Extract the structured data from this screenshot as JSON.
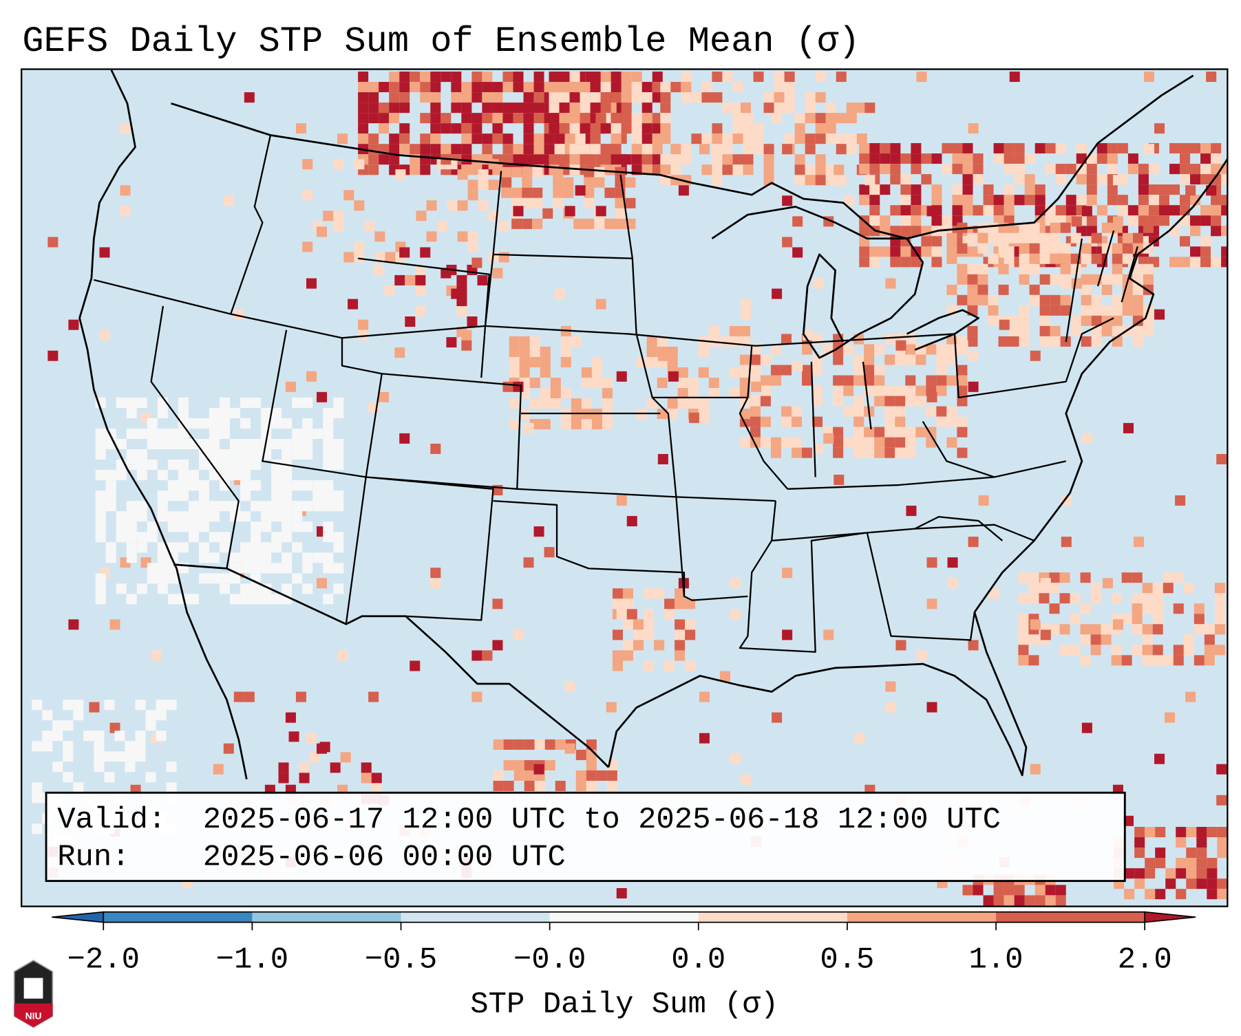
{
  "title": "GEFS Daily STP Sum of Ensemble Mean (σ)",
  "info_box": {
    "valid_label": "Valid:",
    "valid_value": "2025-06-17 12:00 UTC to 2025-06-18 12:00 UTC",
    "run_label": "Run:",
    "run_value": "2025-06-06 00:00 UTC"
  },
  "colorbar": {
    "label": "STP Daily Sum (σ)",
    "ticks": [
      "−2.0",
      "−1.0",
      "−0.5",
      "−0.0",
      "0.0",
      "0.5",
      "1.0",
      "2.0"
    ],
    "colors": [
      "#3a87c0",
      "#92c5de",
      "#d1e5f0",
      "#f7f7f7",
      "#fddbc7",
      "#f4a582",
      "#d6604d"
    ],
    "under_color": "#2166ac",
    "over_color": "#b2182b"
  },
  "map": {
    "background_color": "#d1e5f0",
    "region": "CONUS"
  },
  "logo": {
    "text": "NIU",
    "colors": [
      "#222222",
      "#c8102e"
    ]
  }
}
